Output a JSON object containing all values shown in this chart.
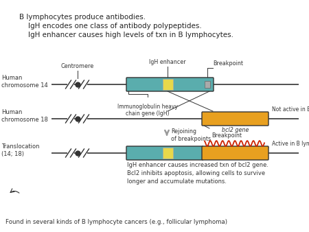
{
  "title_lines": [
    "B lymphocytes produce antibodies.",
    "    IgH encodes one class of antibody polypeptides.",
    "    IgH enhancer causes high levels of txn in B lymphocytes."
  ],
  "footer_line1": "IgH enhancer causes increased txn of bcl2 gene.",
  "footer_line2": "Bcl2 inhibits apoptosis, allowing cells to survive",
  "footer_line3": "longer and accumulate mutations.",
  "footer_line4": "Found in several kinds of B lymphocyte cancers (e.g., follicular lymphoma)",
  "chr14_label": "Human\nchromosome 14",
  "chr18_label": "Human\nchromosome 18",
  "transloc_label": "Translocation\n(14; 18)",
  "centromere_label": "Centromere",
  "breakpoint_label": "Breakpoint",
  "igh_enhancer_label": "IgH enhancer",
  "igh_gene_label": "Immunoglobulin heavy\nchain gene (IgH)",
  "not_active_label": "Not active in B lymphocytes",
  "bcl2_label": "bcl2 gene",
  "rejoining_label": "Rejoining\nof breakpoints",
  "active_label": "Active in B lymphocytes",
  "bg_color": "#ffffff",
  "teal_color": "#5aadad",
  "yellow_color": "#e8d84a",
  "orange_color": "#e8a020",
  "line_color": "#333333",
  "gray_arrow": "#999999"
}
